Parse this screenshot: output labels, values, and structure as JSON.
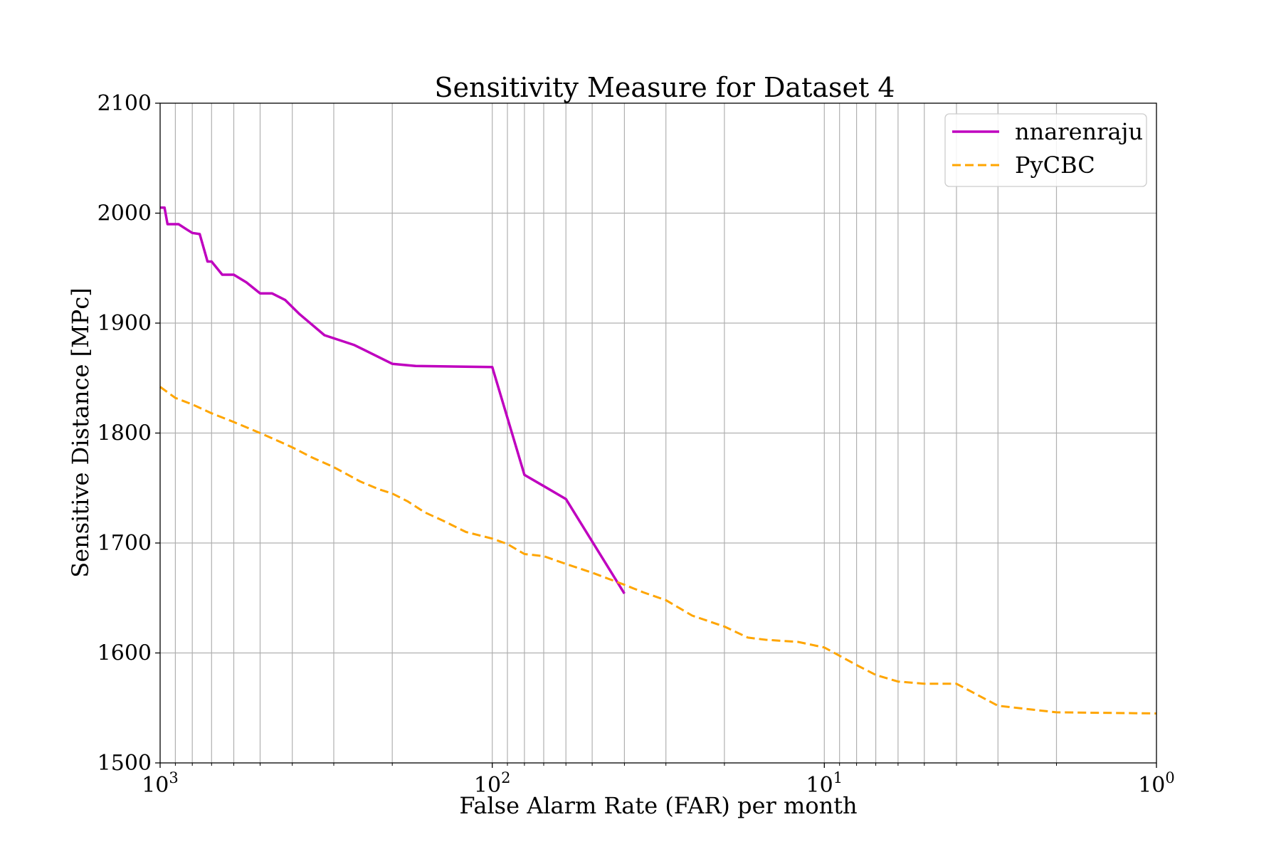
{
  "chart_data": {
    "type": "line",
    "title": "Sensitivity Measure for Dataset 4",
    "xlabel": "False Alarm Rate (FAR) per month",
    "ylabel": "Sensitive Distance [MPc]",
    "x_scale": "log",
    "x_reversed": true,
    "xlim": [
      1000,
      1
    ],
    "ylim": [
      1500,
      2100
    ],
    "grid": true,
    "legend_position": "upper right",
    "x_ticks": [
      {
        "value": 1000,
        "base": "10",
        "exp": "3"
      },
      {
        "value": 100,
        "base": "10",
        "exp": "2"
      },
      {
        "value": 10,
        "base": "10",
        "exp": "1"
      },
      {
        "value": 1,
        "base": "10",
        "exp": "0"
      }
    ],
    "y_ticks": [
      "1500",
      "1600",
      "1700",
      "1800",
      "1900",
      "2000",
      "2100"
    ],
    "series": [
      {
        "name": "nnarenraju",
        "color": "#bf00bf",
        "style": "solid",
        "x": [
          1000,
          970,
          950,
          880,
          830,
          800,
          760,
          720,
          700,
          650,
          600,
          550,
          500,
          460,
          420,
          380,
          320,
          260,
          200,
          170,
          100,
          80,
          60,
          40
        ],
        "y": [
          2005,
          2005,
          1990,
          1990,
          1985,
          1982,
          1981,
          1956,
          1956,
          1944,
          1944,
          1937,
          1927,
          1927,
          1921,
          1908,
          1889,
          1880,
          1863,
          1861,
          1860,
          1762,
          1740,
          1654
        ]
      },
      {
        "name": "PyCBC",
        "color": "#ffa500",
        "style": "dashed",
        "x": [
          1000,
          900,
          800,
          700,
          600,
          500,
          450,
          400,
          350,
          300,
          250,
          220,
          200,
          180,
          160,
          140,
          120,
          100,
          90,
          80,
          70,
          60,
          50,
          40,
          35,
          30,
          25,
          20,
          17,
          15,
          12,
          10,
          8,
          7,
          6,
          5,
          4,
          3,
          2,
          1
        ],
        "y": [
          1842,
          1832,
          1826,
          1818,
          1810,
          1800,
          1794,
          1787,
          1778,
          1769,
          1756,
          1749,
          1745,
          1738,
          1728,
          1720,
          1710,
          1704,
          1699,
          1690,
          1688,
          1681,
          1673,
          1662,
          1655,
          1648,
          1634,
          1624,
          1614,
          1612,
          1610,
          1605,
          1589,
          1580,
          1574,
          1572,
          1572,
          1552,
          1546,
          1545
        ]
      }
    ]
  }
}
